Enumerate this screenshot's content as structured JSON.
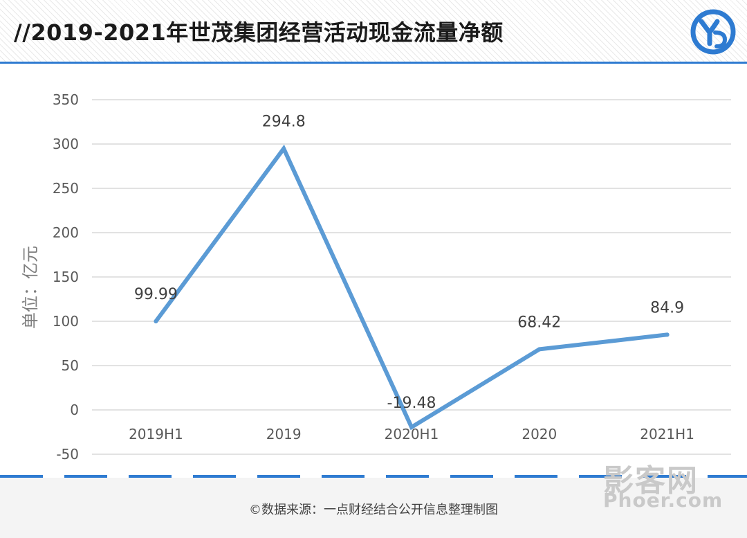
{
  "header": {
    "title": "//2019-2021年世茂集团经营活动现金流量净额"
  },
  "chart_data": {
    "type": "line",
    "categories": [
      "2019H1",
      "2019",
      "2020H1",
      "2020",
      "2021H1"
    ],
    "values": [
      99.99,
      294.8,
      -19.48,
      68.42,
      84.9
    ],
    "data_labels": [
      "99.99",
      "294.8",
      "-19.48",
      "68.42",
      "84.9"
    ],
    "ylabel": "单位：亿元",
    "ylim": [
      -50,
      350
    ],
    "yticks": [
      -50,
      0,
      50,
      100,
      150,
      200,
      250,
      300,
      350
    ],
    "grid": true,
    "legend": "none",
    "line_color": "#5b9bd5"
  },
  "footer": {
    "source": "©数据来源：一点财经结合公开信息整理制图"
  },
  "watermark": {
    "cn": "影客网",
    "en": "Phoer.com"
  },
  "colors": {
    "accent": "#2e7bd1",
    "series": "#5b9bd5",
    "grid": "#d9d9d9"
  }
}
